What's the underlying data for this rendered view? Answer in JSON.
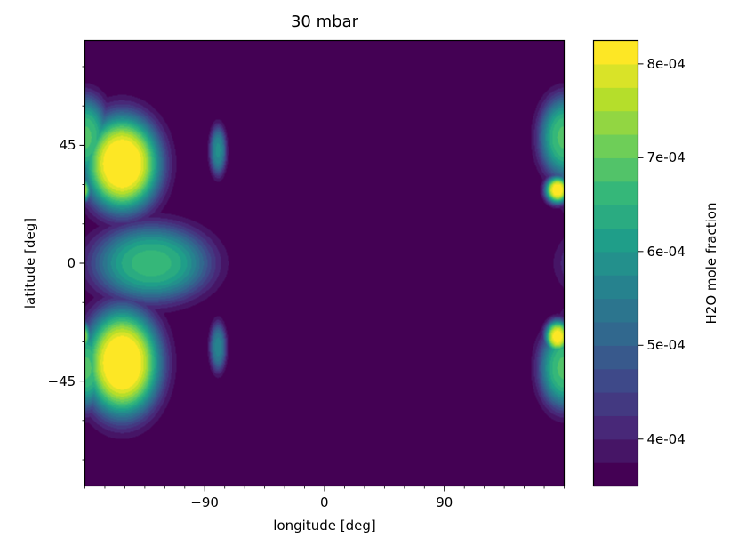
{
  "chart_data": {
    "type": "heatmap",
    "title": "30 mbar",
    "xlabel": "longitude [deg]",
    "ylabel": "latitude [deg]",
    "xlim": [
      -180,
      180
    ],
    "ylim": [
      -85,
      85
    ],
    "xticks": [
      {
        "value": -90,
        "label": "−90"
      },
      {
        "value": 0,
        "label": "0"
      },
      {
        "value": 90,
        "label": "90"
      }
    ],
    "yticks": [
      {
        "value": 45,
        "label": "45"
      },
      {
        "value": 0,
        "label": "0"
      },
      {
        "value": -45,
        "label": "−45"
      }
    ],
    "colorbar": {
      "label": "H2O mole fraction",
      "min": 0.00035,
      "max": 0.000825,
      "levels": 19,
      "ticks": [
        {
          "value": 0.0004,
          "label": "4e-04"
        },
        {
          "value": 0.0005,
          "label": "5e-04"
        },
        {
          "value": 0.0006,
          "label": "6e-04"
        },
        {
          "value": 0.0007,
          "label": "7e-04"
        },
        {
          "value": 0.0008,
          "label": "8e-04"
        }
      ]
    },
    "colormap": [
      "#440154",
      "#482878",
      "#3e4989",
      "#31688e",
      "#26828e",
      "#1f9e89",
      "#35b779",
      "#6ece58",
      "#b5de2b",
      "#fde725"
    ],
    "field": {
      "background": 0.00035,
      "features": [
        {
          "lon": -152,
          "lat": 38,
          "value": 0.00085,
          "lon_width": 28,
          "lat_width": 18
        },
        {
          "lon": -152,
          "lat": -38,
          "value": 0.00085,
          "lon_width": 28,
          "lat_width": 20
        },
        {
          "lon": -130,
          "lat": 0,
          "value": 0.00066,
          "lon_width": 42,
          "lat_width": 14
        },
        {
          "lon": -80,
          "lat": 43,
          "value": 0.00058,
          "lon_width": 6,
          "lat_width": 9
        },
        {
          "lon": -80,
          "lat": -32,
          "value": 0.00056,
          "lon_width": 6,
          "lat_width": 9
        },
        {
          "lon": 175,
          "lat": 28,
          "value": 0.00083,
          "lon_width": 9,
          "lat_width": 5
        },
        {
          "lon": 175,
          "lat": -28,
          "value": 0.00082,
          "lon_width": 9,
          "lat_width": 6
        },
        {
          "lon": 180,
          "lat": 48,
          "value": 0.00068,
          "lon_width": 18,
          "lat_width": 15
        },
        {
          "lon": 180,
          "lat": -40,
          "value": 0.00068,
          "lon_width": 18,
          "lat_width": 15
        }
      ]
    }
  }
}
